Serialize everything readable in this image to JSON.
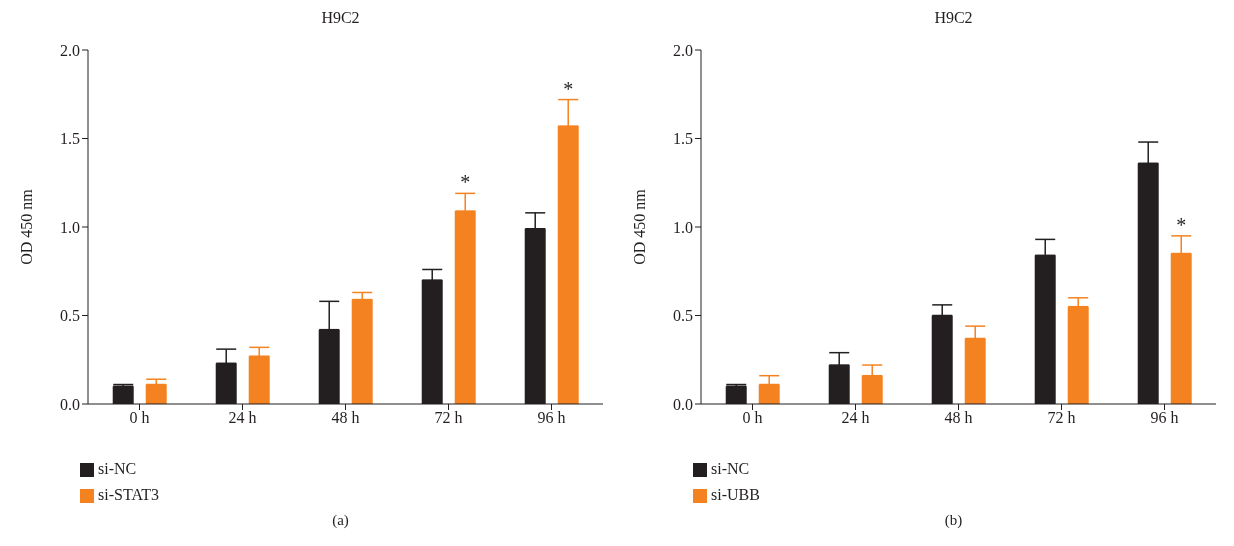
{
  "chart_data": [
    {
      "type": "bar",
      "title": "H9C2",
      "ylabel": "OD 450 nm",
      "categories": [
        "0 h",
        "24 h",
        "48 h",
        "72 h",
        "96 h"
      ],
      "series": [
        {
          "name": "si-NC",
          "color": "#231f20",
          "values": [
            0.1,
            0.23,
            0.42,
            0.7,
            0.99
          ],
          "errors": [
            [
              0.1,
              0.11
            ],
            [
              0.23,
              0.31
            ],
            [
              0.42,
              0.58
            ],
            [
              0.7,
              0.76
            ],
            [
              0.99,
              1.08
            ]
          ]
        },
        {
          "name": "si-STAT3",
          "color": "#f58220",
          "values": [
            0.11,
            0.27,
            0.59,
            1.09,
            1.57
          ],
          "errors": [
            [
              0.11,
              0.14
            ],
            [
              0.27,
              0.32
            ],
            [
              0.59,
              0.63
            ],
            [
              1.09,
              1.19
            ],
            [
              1.57,
              1.72
            ]
          ],
          "value_labels": [
            null,
            null,
            null,
            "*",
            "*"
          ]
        }
      ],
      "ylim": [
        0,
        2
      ],
      "yticks": [
        {
          "value": 0,
          "label": "0.0"
        },
        {
          "value": 0.5,
          "label": "0.5"
        },
        {
          "value": 1,
          "label": "1.0"
        },
        {
          "value": 1.5,
          "label": "1.5"
        },
        {
          "value": 2,
          "label": "2.0"
        }
      ],
      "grid": false,
      "legend": "bottom left",
      "annotations": [
        "(a)"
      ]
    },
    {
      "type": "bar",
      "title": "H9C2",
      "ylabel": "OD 450 nm",
      "categories": [
        "0 h",
        "24 h",
        "48 h",
        "72 h",
        "96 h"
      ],
      "series": [
        {
          "name": "si-NC",
          "color": "#231f20",
          "values": [
            0.1,
            0.22,
            0.5,
            0.84,
            1.36
          ],
          "errors": [
            [
              0.1,
              0.11
            ],
            [
              0.22,
              0.29
            ],
            [
              0.5,
              0.56
            ],
            [
              0.84,
              0.93
            ],
            [
              1.36,
              1.48
            ]
          ]
        },
        {
          "name": "si-UBB",
          "color": "#f58220",
          "values": [
            0.11,
            0.16,
            0.37,
            0.55,
            0.85
          ],
          "errors": [
            [
              0.11,
              0.16
            ],
            [
              0.16,
              0.22
            ],
            [
              0.37,
              0.44
            ],
            [
              0.55,
              0.6
            ],
            [
              0.85,
              0.95
            ]
          ],
          "value_labels": [
            null,
            null,
            null,
            null,
            "*"
          ]
        }
      ],
      "ylim": [
        0,
        2
      ],
      "yticks": [
        {
          "value": 0,
          "label": "0.0"
        },
        {
          "value": 0.5,
          "label": "0.5"
        },
        {
          "value": 1,
          "label": "1.0"
        },
        {
          "value": 1.5,
          "label": "1.5"
        },
        {
          "value": 2,
          "label": "2.0"
        }
      ],
      "grid": false,
      "legend": "bottom left",
      "annotations": [
        "(b)"
      ]
    }
  ]
}
